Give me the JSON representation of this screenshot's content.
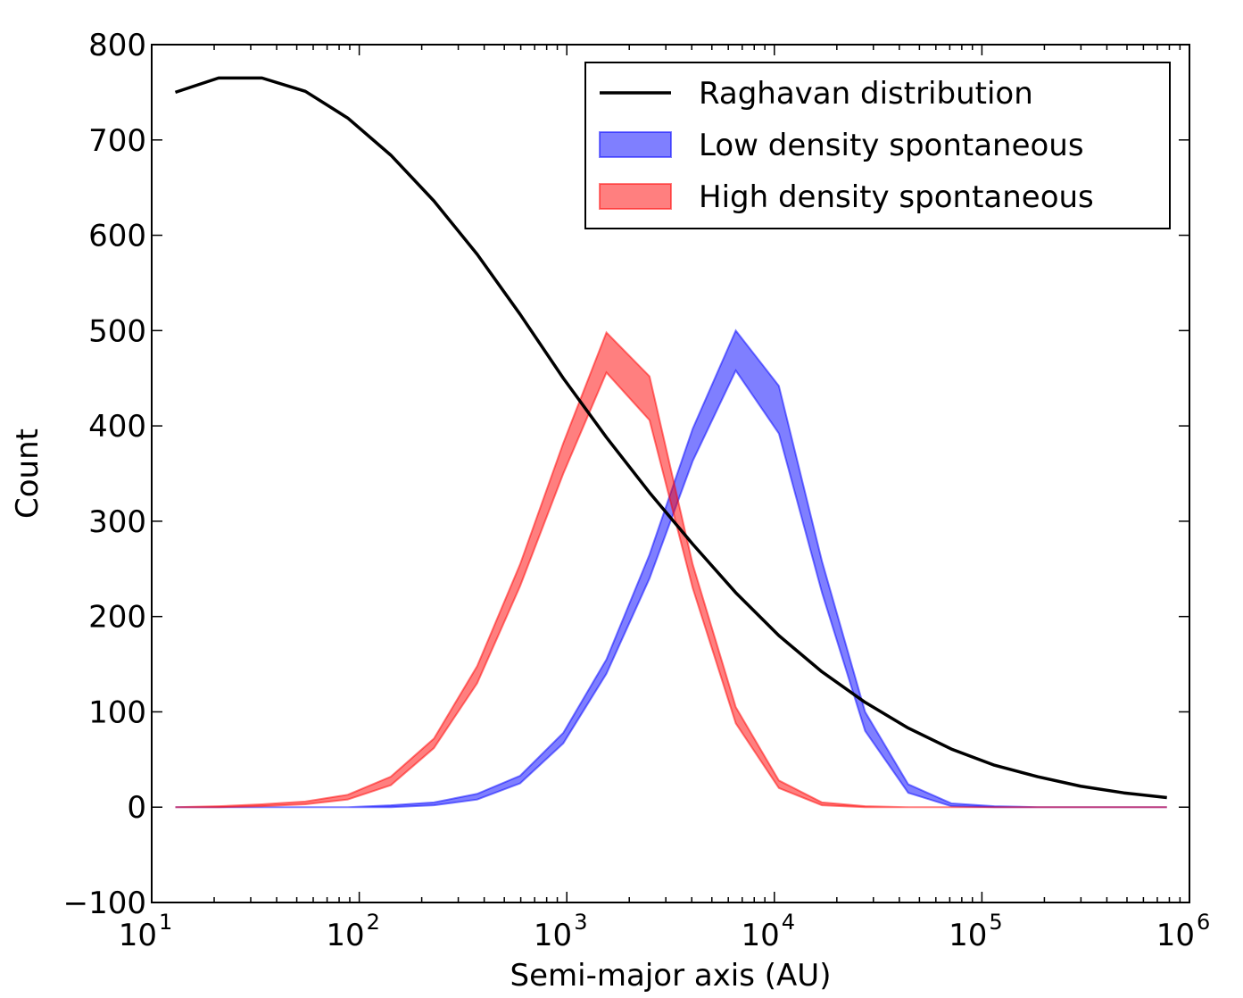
{
  "chart_data": {
    "type": "line",
    "xlabel": "Semi-major axis (AU)",
    "ylabel": "Count",
    "xscale": "log",
    "xlim": [
      10,
      1000000
    ],
    "ylim": [
      -100,
      800
    ],
    "x_ticks": [
      {
        "value": 10,
        "base": "10",
        "exp": "1"
      },
      {
        "value": 100,
        "base": "10",
        "exp": "2"
      },
      {
        "value": 1000,
        "base": "10",
        "exp": "3"
      },
      {
        "value": 10000,
        "base": "10",
        "exp": "4"
      },
      {
        "value": 100000,
        "base": "10",
        "exp": "5"
      },
      {
        "value": 1000000,
        "base": "10",
        "exp": "6"
      }
    ],
    "y_ticks": [
      {
        "value": -100,
        "label": "−100"
      },
      {
        "value": 0,
        "label": "0"
      },
      {
        "value": 100,
        "label": "100"
      },
      {
        "value": 200,
        "label": "200"
      },
      {
        "value": 300,
        "label": "300"
      },
      {
        "value": 400,
        "label": "400"
      },
      {
        "value": 500,
        "label": "500"
      },
      {
        "value": 600,
        "label": "600"
      },
      {
        "value": 700,
        "label": "700"
      },
      {
        "value": 800,
        "label": "800"
      }
    ],
    "grid": false,
    "legend_position": "top-right",
    "series": [
      {
        "name": "Raghavan distribution",
        "kind": "line",
        "color": "#000000",
        "x": [
          13,
          21,
          34,
          55,
          88,
          142,
          229,
          370,
          596,
          962,
          1552,
          2504,
          4040,
          6518,
          10515,
          16965,
          27370,
          44157,
          71239,
          114932,
          185424,
          299150,
          482630,
          778640
        ],
        "y": [
          750,
          765,
          765,
          751,
          723,
          684,
          636,
          580,
          517,
          450,
          388,
          330,
          276,
          225,
          180,
          142,
          110,
          83,
          61,
          44,
          32,
          22,
          15,
          10
        ]
      },
      {
        "name": "Low density spontaneous",
        "kind": "band",
        "color": "#0000ff",
        "fill_opacity": 0.5,
        "x": [
          13,
          21,
          34,
          55,
          88,
          142,
          229,
          370,
          596,
          962,
          1552,
          2504,
          4040,
          6518,
          10515,
          16965,
          27370,
          44157,
          71239,
          114932,
          185424,
          299150,
          482630,
          778640
        ],
        "lower": [
          0,
          0,
          0,
          0,
          0,
          0,
          2,
          8,
          25,
          67,
          140,
          240,
          363,
          458,
          392,
          225,
          80,
          15,
          1,
          0,
          0,
          0,
          0,
          0
        ],
        "upper": [
          0,
          0,
          0,
          0,
          0,
          2,
          5,
          14,
          33,
          78,
          155,
          265,
          397,
          500,
          442,
          258,
          100,
          24,
          4,
          1,
          0,
          0,
          0,
          0
        ]
      },
      {
        "name": "High density spontaneous",
        "kind": "band",
        "color": "#ff0000",
        "fill_opacity": 0.5,
        "x": [
          13,
          21,
          34,
          55,
          88,
          142,
          229,
          370,
          596,
          962,
          1552,
          2504,
          4040,
          6518,
          10515,
          16965,
          27370,
          44157,
          71239,
          114932,
          185424,
          299150,
          482630,
          778640
        ],
        "lower": [
          0,
          0,
          1,
          3,
          8,
          23,
          62,
          130,
          232,
          350,
          456,
          406,
          230,
          88,
          20,
          2,
          0,
          0,
          0,
          0,
          0,
          0,
          0,
          0
        ],
        "upper": [
          0,
          1,
          3,
          6,
          13,
          32,
          72,
          148,
          255,
          382,
          498,
          452,
          255,
          105,
          28,
          5,
          1,
          0,
          0,
          0,
          0,
          0,
          0,
          0
        ]
      }
    ]
  }
}
